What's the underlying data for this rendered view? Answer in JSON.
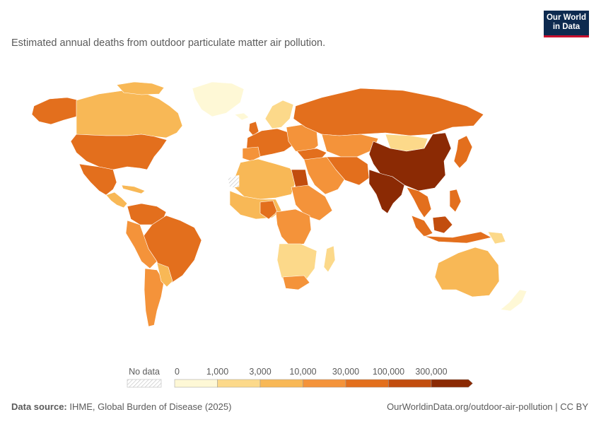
{
  "header": {
    "subtitle": "Estimated annual deaths from outdoor particulate matter air pollution.",
    "logo_line1": "Our World",
    "logo_line2": "in Data"
  },
  "legend": {
    "no_data_label": "No data",
    "ticks": [
      "0",
      "1,000",
      "3,000",
      "10,000",
      "30,000",
      "100,000",
      "300,000"
    ],
    "colors": [
      "#fef8d6",
      "#fcd98a",
      "#f8b856",
      "#f4933a",
      "#e36f1d",
      "#c24d0e",
      "#8b2a04"
    ]
  },
  "footer": {
    "source_label": "Data source:",
    "source_value": " IHME, Global Burden of Disease (2025)",
    "url": "OurWorldinData.org/outdoor-air-pollution | CC BY"
  }
}
